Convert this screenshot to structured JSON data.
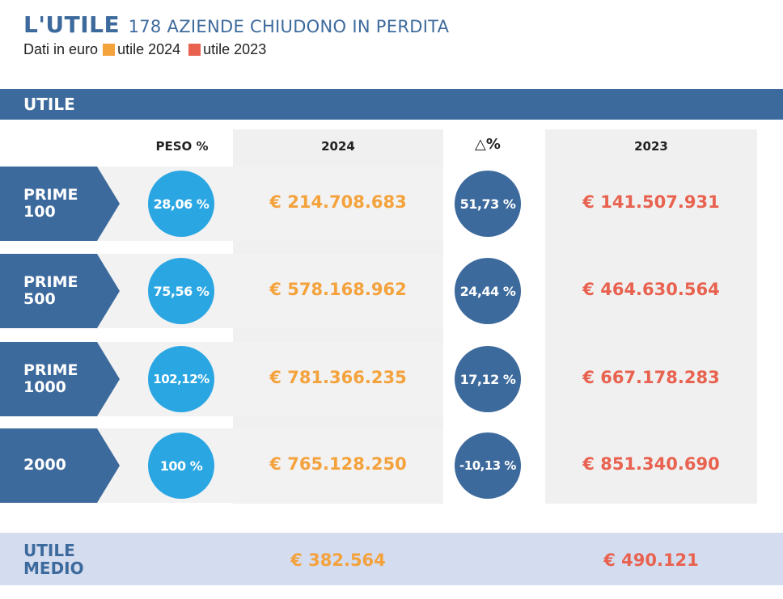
{
  "title": "L'UTILE",
  "subtitle": "178 AZIENDE CHIUDONO IN PERDITA",
  "legend": {
    "prefix": "Dati in euro",
    "items": [
      {
        "label": "utile 2024",
        "color": "#f4a23c"
      },
      {
        "label": "utile 2023",
        "color": "#e8624f"
      }
    ]
  },
  "band_label": "UTILE",
  "headers": {
    "peso": "PESO %",
    "year_2024": "2024",
    "delta": "△%",
    "year_2023": "2023"
  },
  "colors": {
    "primary": "#3d6a9c",
    "light_blue": "#2aa6e2",
    "orange": "#f4a23c",
    "red": "#e8624f",
    "footer_bg": "#d4dcef"
  },
  "chart_data": {
    "type": "table",
    "columns": [
      "PESO %",
      "2024",
      "△%",
      "2023"
    ],
    "rows": [
      {
        "label_line1": "PRIME",
        "label_line2": "100",
        "peso": "28,06 %",
        "v2024": "€ 214.708.683",
        "delta": "51,73 %",
        "v2023": "€ 141.507.931"
      },
      {
        "label_line1": "PRIME",
        "label_line2": "500",
        "peso": "75,56 %",
        "v2024": "€ 578.168.962",
        "delta": "24,44 %",
        "v2023": "€ 464.630.564"
      },
      {
        "label_line1": "PRIME",
        "label_line2": "1000",
        "peso": "102,12%",
        "v2024": "€ 781.366.235",
        "delta": "17,12 %",
        "v2023": "€ 667.178.283"
      },
      {
        "label_line1": "2000",
        "label_line2": "",
        "peso": "100 %",
        "v2024": "€ 765.128.250",
        "delta": "-10,13 %",
        "v2023": "€ 851.340.690"
      }
    ],
    "footer": {
      "label_line1": "UTILE",
      "label_line2": "MEDIO",
      "v2024": "€ 382.564",
      "v2023": "€ 490.121"
    }
  }
}
